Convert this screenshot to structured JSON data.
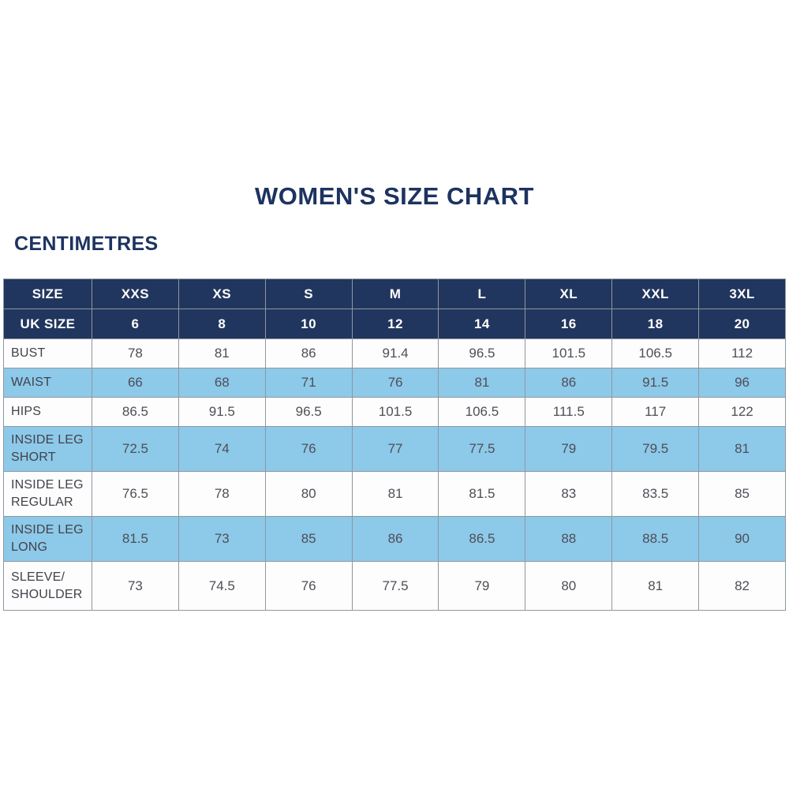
{
  "page": {
    "title": "WOMEN'S SIZE CHART",
    "unit_label": "CENTIMETRES"
  },
  "colors": {
    "navy": "#21365e",
    "navy_text": "#1d3360",
    "light_blue": "#8dc9e9",
    "border": "#9097a0",
    "cell_text": "#4e4e57",
    "label_text": "#42424a",
    "white": "#ffffff"
  },
  "chart_data": {
    "type": "table",
    "title": "WOMEN'S SIZE CHART",
    "units": "CENTIMETRES",
    "header_rows": [
      {
        "label": "SIZE",
        "values": [
          "XXS",
          "XS",
          "S",
          "M",
          "L",
          "XL",
          "XXL",
          "3XL"
        ]
      },
      {
        "label": "UK SIZE",
        "values": [
          "6",
          "8",
          "10",
          "12",
          "14",
          "16",
          "18",
          "20"
        ]
      }
    ],
    "rows": [
      {
        "label": "BUST",
        "values": [
          "78",
          "81",
          "86",
          "91.4",
          "96.5",
          "101.5",
          "106.5",
          "112"
        ]
      },
      {
        "label": "WAIST",
        "values": [
          "66",
          "68",
          "71",
          "76",
          "81",
          "86",
          "91.5",
          "96"
        ]
      },
      {
        "label": "HIPS",
        "values": [
          "86.5",
          "91.5",
          "96.5",
          "101.5",
          "106.5",
          "111.5",
          "117",
          "122"
        ]
      },
      {
        "label": "INSIDE LEG SHORT",
        "values": [
          "72.5",
          "74",
          "76",
          "77",
          "77.5",
          "79",
          "79.5",
          "81"
        ]
      },
      {
        "label": "INSIDE LEG REGULAR",
        "values": [
          "76.5",
          "78",
          "80",
          "81",
          "81.5",
          "83",
          "83.5",
          "85"
        ]
      },
      {
        "label": "INSIDE LEG LONG",
        "values": [
          "81.5",
          "73",
          "85",
          "86",
          "86.5",
          "88",
          "88.5",
          "90"
        ]
      },
      {
        "label": "SLEEVE/ SHOULDER",
        "values": [
          "73",
          "74.5",
          "76",
          "77.5",
          "79",
          "80",
          "81",
          "82"
        ]
      }
    ]
  }
}
